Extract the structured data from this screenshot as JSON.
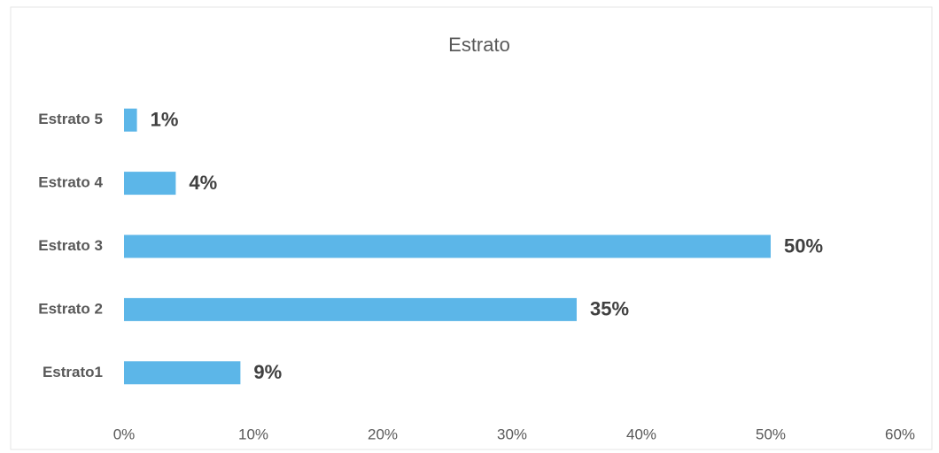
{
  "chart_data": {
    "type": "barh",
    "title": "Estrato",
    "categories": [
      "Estrato1",
      "Estrato 2",
      "Estrato 3",
      "Estrato 4",
      "Estrato 5"
    ],
    "values": [
      9,
      35,
      50,
      4,
      1
    ],
    "value_labels": [
      "9%",
      "35%",
      "50%",
      "4%",
      "1%"
    ],
    "color": "#5cb6e8",
    "xlim": [
      0,
      60
    ],
    "xticks": [
      {
        "value": 0,
        "label": "0%"
      },
      {
        "value": 10,
        "label": "10%"
      },
      {
        "value": 20,
        "label": "20%"
      },
      {
        "value": 30,
        "label": "30%"
      },
      {
        "value": 40,
        "label": "40%"
      },
      {
        "value": 50,
        "label": "50%"
      },
      {
        "value": 60,
        "label": "60%"
      }
    ],
    "grid": false
  }
}
